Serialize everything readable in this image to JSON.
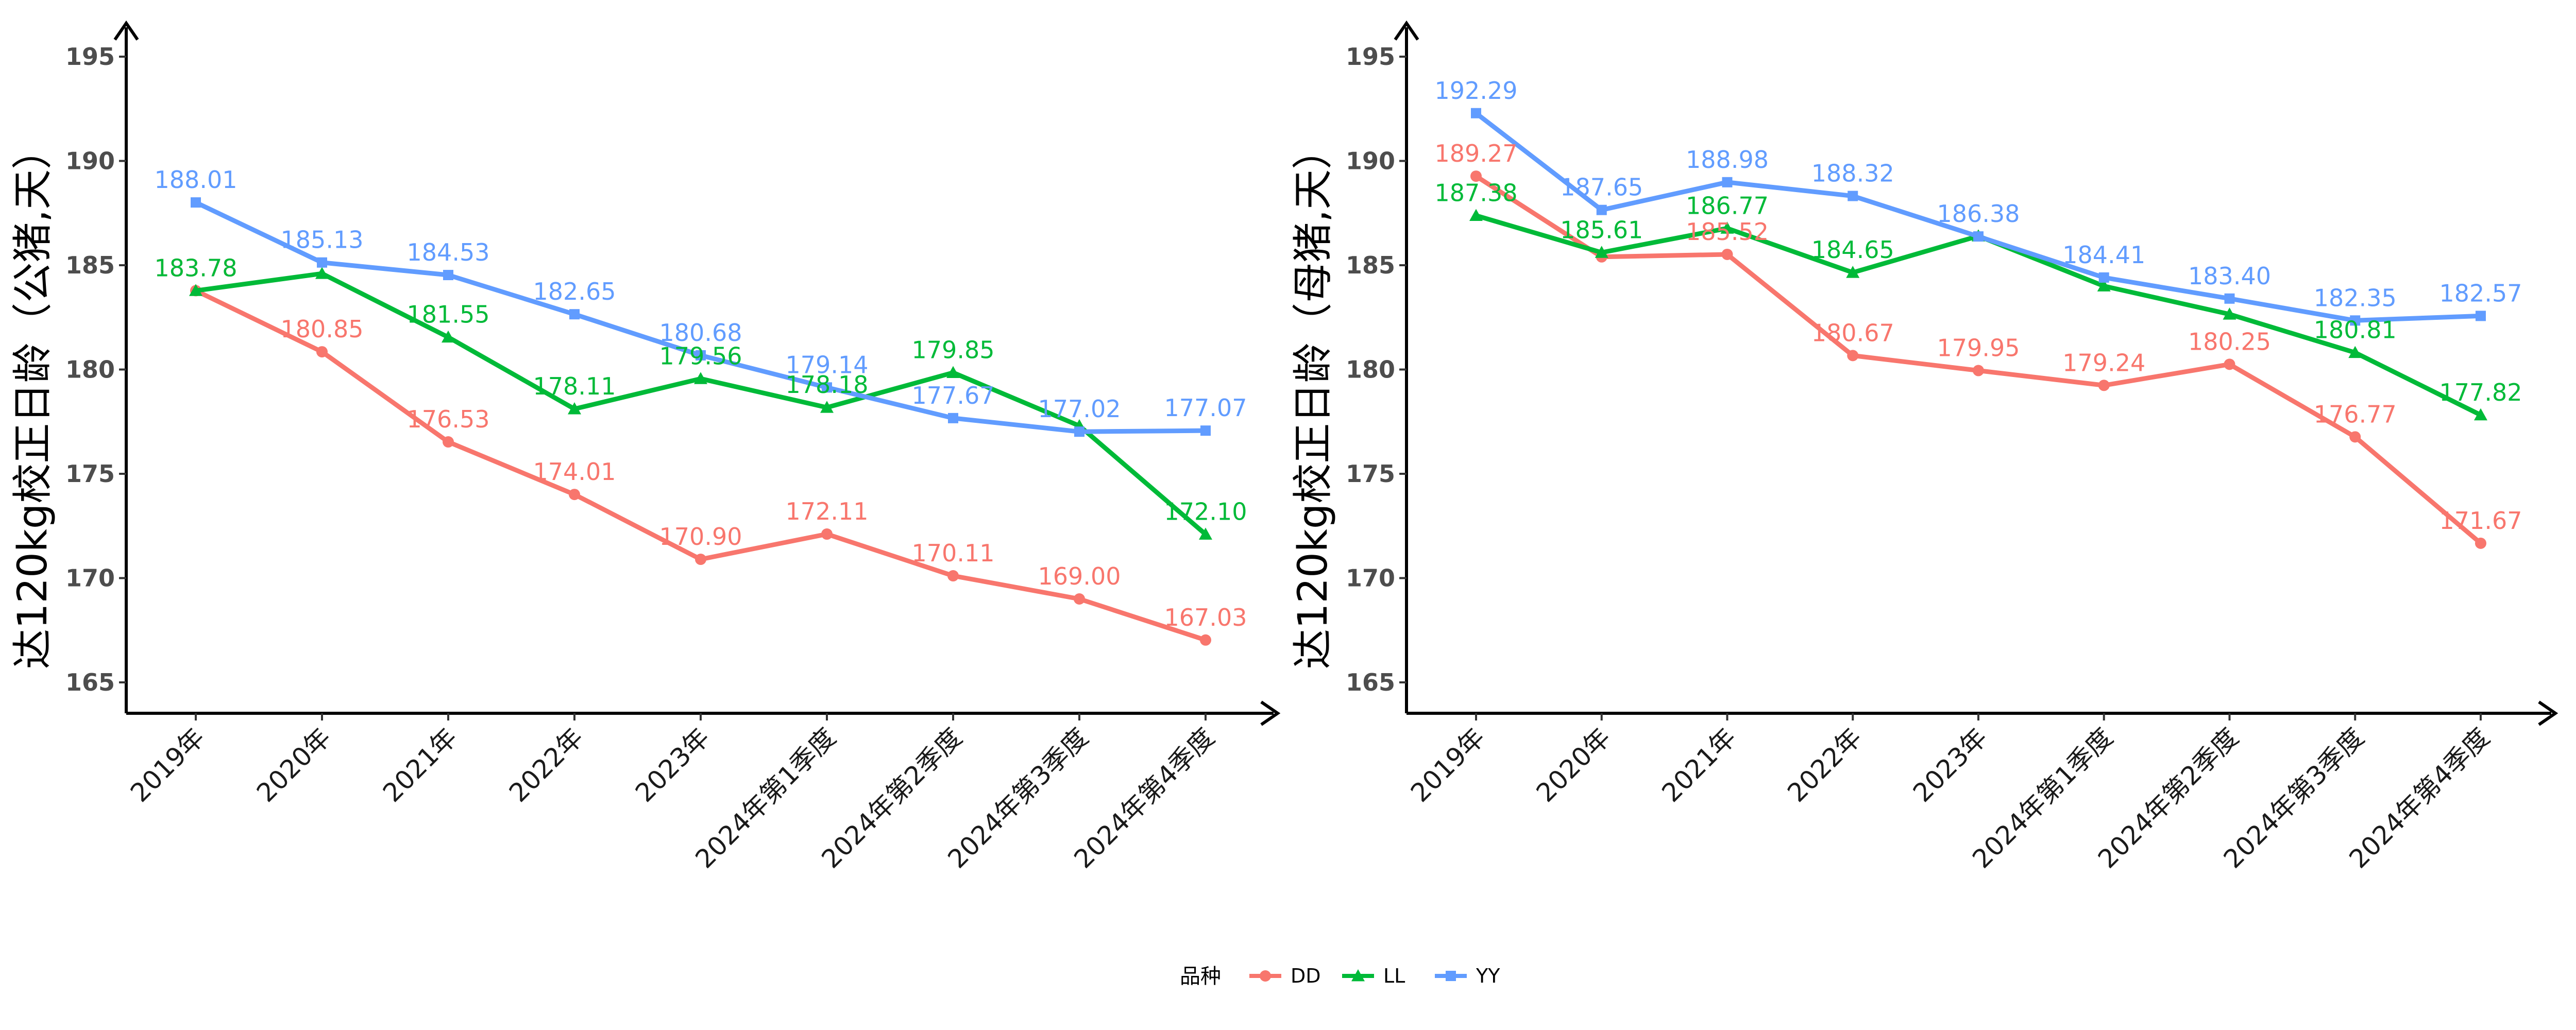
{
  "legend": {
    "title": "品种",
    "position": "bottom",
    "entries": [
      {
        "name": "DD",
        "color": "#F8766D",
        "marker": "circle"
      },
      {
        "name": "LL",
        "color": "#00BA38",
        "marker": "triangle"
      },
      {
        "name": "YY",
        "color": "#619CFF",
        "marker": "square"
      }
    ]
  },
  "chart_data": [
    {
      "type": "line",
      "ylabel": "达120kg校正日龄（公猪,天）",
      "xlabel": "",
      "ylim": [
        163.5,
        196.5
      ],
      "yticks": [
        165,
        170,
        175,
        180,
        185,
        190,
        195
      ],
      "categories": [
        "2019年",
        "2020年",
        "2021年",
        "2022年",
        "2023年",
        "2024年第1季度",
        "2024年第2季度",
        "2024年第3季度",
        "2024年第4季度"
      ],
      "series": [
        {
          "name": "DD",
          "values": [
            183.78,
            180.85,
            176.53,
            174.01,
            170.9,
            172.11,
            170.11,
            169.0,
            167.03
          ],
          "labels": [
            "183.78",
            "180.85",
            "176.53",
            "174.01",
            "170.90",
            "172.11",
            "170.11",
            "169.00",
            "167.03"
          ]
        },
        {
          "name": "LL",
          "values": [
            183.78,
            184.6,
            181.55,
            178.11,
            179.56,
            178.18,
            179.85,
            177.3,
            172.1
          ],
          "labels": [
            "183.78",
            "",
            "181.55",
            "178.11",
            "179.56",
            "178.18",
            "179.85",
            "",
            "172.10"
          ]
        },
        {
          "name": "YY",
          "values": [
            188.01,
            185.13,
            184.53,
            182.65,
            180.68,
            179.14,
            177.67,
            177.02,
            177.07
          ],
          "labels": [
            "188.01",
            "185.13",
            "184.53",
            "182.65",
            "180.68",
            "179.14",
            "177.67",
            "177.02",
            "177.07"
          ]
        }
      ]
    },
    {
      "type": "line",
      "ylabel": "达120kg校正日龄（母猪,天）",
      "xlabel": "",
      "ylim": [
        163.5,
        196.5
      ],
      "yticks": [
        165,
        170,
        175,
        180,
        185,
        190,
        195
      ],
      "categories": [
        "2019年",
        "2020年",
        "2021年",
        "2022年",
        "2023年",
        "2024年第1季度",
        "2024年第2季度",
        "2024年第3季度",
        "2024年第4季度"
      ],
      "series": [
        {
          "name": "DD",
          "values": [
            189.27,
            185.4,
            185.52,
            180.67,
            179.95,
            179.24,
            180.25,
            176.77,
            171.67
          ],
          "labels": [
            "189.27",
            "",
            "185.52",
            "180.67",
            "179.95",
            "179.24",
            "180.25",
            "176.77",
            "171.67"
          ]
        },
        {
          "name": "LL",
          "values": [
            187.38,
            185.61,
            186.77,
            184.65,
            186.4,
            184.0,
            182.65,
            180.81,
            177.82
          ],
          "labels": [
            "187.38",
            "185.61",
            "186.77",
            "184.65",
            "",
            "",
            "",
            "180.81",
            "177.82"
          ]
        },
        {
          "name": "YY",
          "values": [
            192.29,
            187.65,
            188.98,
            188.32,
            186.38,
            184.41,
            183.4,
            182.35,
            182.57
          ],
          "labels": [
            "192.29",
            "187.65",
            "188.98",
            "188.32",
            "186.38",
            "184.41",
            "183.40",
            "182.35",
            "182.57"
          ]
        }
      ]
    }
  ]
}
